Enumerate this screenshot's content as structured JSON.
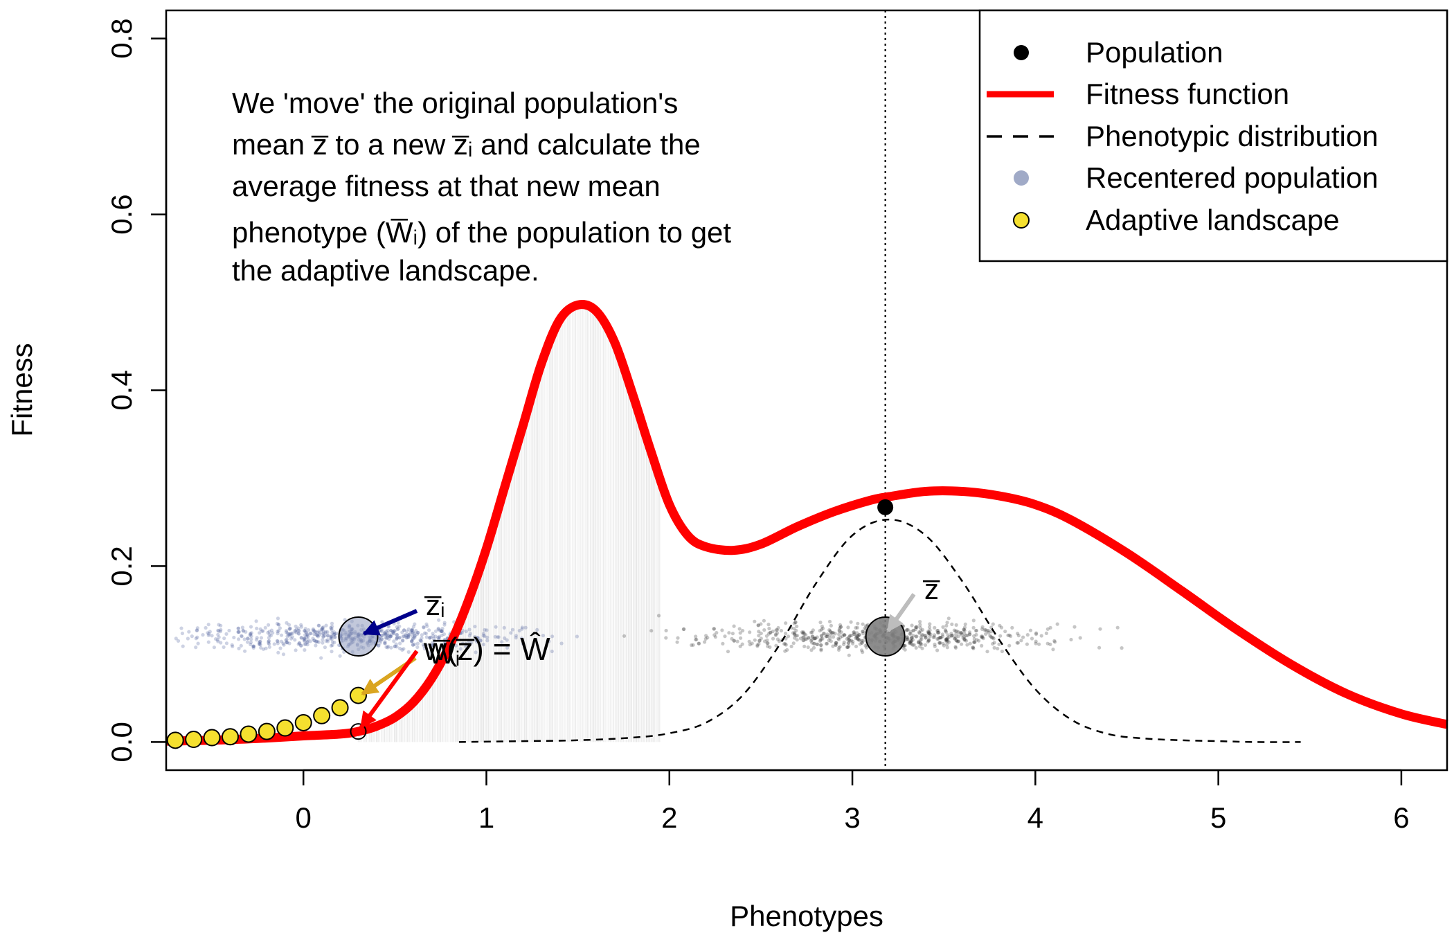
{
  "chart_data": {
    "type": "line",
    "xlabel": "Phenotypes",
    "ylabel": "Fitness",
    "xlim": [
      -0.75,
      6.25
    ],
    "ylim": [
      -0.032,
      0.832
    ],
    "x_ticks": [
      0,
      1,
      2,
      3,
      4,
      5,
      6
    ],
    "y_ticks": [
      0.0,
      0.2,
      0.4,
      0.6,
      0.8
    ],
    "x_tick_labels": [
      "0",
      "1",
      "2",
      "3",
      "4",
      "5",
      "6"
    ],
    "y_tick_labels": [
      "0.0",
      "0.2",
      "0.4",
      "0.6",
      "0.8"
    ],
    "grid": false,
    "legend_position": "top-right",
    "legend": [
      {
        "label": "Population",
        "symbol": "point",
        "color": "#000000"
      },
      {
        "label": "Fitness function",
        "symbol": "line",
        "color": "#ff0000"
      },
      {
        "label": "Phenotypic distribution",
        "symbol": "dashed-line",
        "color": "#000000"
      },
      {
        "label": "Recentered population",
        "symbol": "point",
        "color": "#8f9bbd"
      },
      {
        "label": "Adaptive landscape",
        "symbol": "point",
        "color": "#f5e02f"
      }
    ],
    "annotation_lines": [
      "We 'move' the original population's",
      "mean z̅ to a new z̅ᵢ and calculate the",
      "average fitness at that new mean",
      "phenotype (W̅ᵢ) of the population to get",
      "the adaptive landscape."
    ],
    "arrow_labels": {
      "zi": "z̅ᵢ",
      "z": "z̅",
      "Wi": "W̅ᵢ",
      "wz": "w(z̅) = Ŵ"
    },
    "series": [
      {
        "name": "Fitness function",
        "type": "line",
        "color": "#ff0000",
        "x": [
          -0.75,
          -0.5,
          -0.25,
          0.0,
          0.2,
          0.3,
          0.4,
          0.5,
          0.6,
          0.7,
          0.8,
          0.9,
          1.0,
          1.1,
          1.2,
          1.3,
          1.4,
          1.5,
          1.6,
          1.7,
          1.8,
          1.9,
          2.0,
          2.1,
          2.2,
          2.35,
          2.5,
          2.7,
          2.9,
          3.1,
          3.2,
          3.4,
          3.6,
          3.8,
          4.0,
          4.2,
          4.5,
          4.8,
          5.1,
          5.4,
          5.7,
          6.0,
          6.25
        ],
        "y": [
          0.001,
          0.002,
          0.004,
          0.007,
          0.009,
          0.012,
          0.018,
          0.028,
          0.045,
          0.072,
          0.11,
          0.16,
          0.22,
          0.29,
          0.36,
          0.43,
          0.48,
          0.497,
          0.49,
          0.455,
          0.395,
          0.33,
          0.27,
          0.235,
          0.222,
          0.218,
          0.225,
          0.245,
          0.262,
          0.275,
          0.279,
          0.285,
          0.285,
          0.28,
          0.27,
          0.252,
          0.215,
          0.172,
          0.128,
          0.088,
          0.055,
          0.032,
          0.02
        ]
      },
      {
        "name": "Phenotypic distribution",
        "type": "dashed-line",
        "color": "#000000",
        "x": [
          0.85,
          1.2,
          1.5,
          1.8,
          2.0,
          2.2,
          2.4,
          2.6,
          2.8,
          3.0,
          3.2,
          3.4,
          3.6,
          3.8,
          4.0,
          4.2,
          4.4,
          4.6,
          4.8,
          5.0,
          5.2,
          5.45
        ],
        "y": [
          0.0,
          0.001,
          0.002,
          0.005,
          0.01,
          0.022,
          0.053,
          0.11,
          0.18,
          0.235,
          0.253,
          0.235,
          0.183,
          0.117,
          0.06,
          0.025,
          0.009,
          0.004,
          0.002,
          0.001,
          0.0,
          0.0
        ]
      },
      {
        "name": "Adaptive landscape",
        "type": "points",
        "color": "#f5e02f",
        "x": [
          -0.7,
          -0.6,
          -0.5,
          -0.4,
          -0.3,
          -0.2,
          -0.1,
          0.0,
          0.1,
          0.2,
          0.3
        ],
        "y": [
          0.002,
          0.003,
          0.005,
          0.006,
          0.009,
          0.012,
          0.016,
          0.022,
          0.03,
          0.039,
          0.053
        ]
      },
      {
        "name": "Population",
        "type": "points",
        "color": "#000000",
        "x": [
          3.18
        ],
        "y": [
          0.267
        ]
      },
      {
        "name": "Recentered population",
        "type": "points",
        "color": "#8f9bbd",
        "x": [
          0.3
        ],
        "y": [
          0.12
        ]
      }
    ],
    "mean_line_x": 3.18,
    "original_mean": {
      "x": 3.18,
      "y": 0.12
    },
    "recentered_mean": {
      "x": 0.3,
      "y": 0.12
    },
    "fitness_at_recentered_mean": {
      "x": 0.3,
      "y": 0.012
    },
    "original_cloud": {
      "center": 3.18,
      "sd": 0.45,
      "y": 0.12
    },
    "recentered_cloud": {
      "center": 0.3,
      "sd": 0.45,
      "y": 0.12
    }
  }
}
